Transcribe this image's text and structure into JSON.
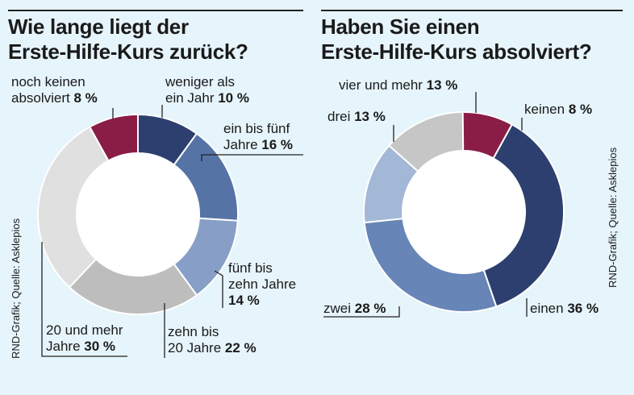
{
  "colors": {
    "background": "#e6f4fb",
    "text": "#1a1a1a"
  },
  "source": "RND-Grafik; Quelle: Asklepios",
  "chart_data": [
    {
      "type": "pie",
      "variant": "donut",
      "title": "Wie lange liegt der Erste-Hilfe-Kurs zurück?",
      "title_lines": [
        "Wie lange liegt der",
        "Erste-Hilfe-Kurs zurück?"
      ],
      "unit": "%",
      "start_angle_deg": 0,
      "direction": "clockwise",
      "slices": [
        {
          "label": "weniger als ein Jahr",
          "lines": [
            "weniger als",
            "ein Jahr"
          ],
          "value": 10,
          "value_text": "10 %",
          "color": "#2c3f6e"
        },
        {
          "label": "ein bis fünf Jahre",
          "lines": [
            "ein bis fünf",
            "Jahre"
          ],
          "value": 16,
          "value_text": "16 %",
          "color": "#5673a6"
        },
        {
          "label": "fünf bis zehn Jahre",
          "lines": [
            "fünf bis",
            "zehn Jahre"
          ],
          "value": 14,
          "value_text": "14 %",
          "color": "#879fc7"
        },
        {
          "label": "zehn bis 20 Jahre",
          "lines": [
            "zehn bis",
            "20 Jahre"
          ],
          "value": 22,
          "value_text": "22 %",
          "color": "#bdbdbd"
        },
        {
          "label": "20 und mehr Jahre",
          "lines": [
            "20 und mehr",
            "Jahre"
          ],
          "value": 30,
          "value_text": "30 %",
          "color": "#e0e0e0"
        },
        {
          "label": "noch keinen absolviert",
          "lines": [
            "noch keinen",
            "absolviert"
          ],
          "value": 8,
          "value_text": "8 %",
          "color": "#8a1d46"
        }
      ]
    },
    {
      "type": "pie",
      "variant": "donut",
      "title": "Haben Sie einen Erste-Hilfe-Kurs absolviert?",
      "title_lines": [
        "Haben Sie einen",
        "Erste-Hilfe-Kurs absolviert?"
      ],
      "unit": "%",
      "start_angle_deg": 28.8,
      "direction": "clockwise",
      "slices": [
        {
          "label": "einen",
          "lines": [
            "einen"
          ],
          "value": 36,
          "value_text": "36 %",
          "color": "#2c3f6e"
        },
        {
          "label": "zwei",
          "lines": [
            "zwei"
          ],
          "value": 28,
          "value_text": "28 %",
          "color": "#6785b6"
        },
        {
          "label": "drei",
          "lines": [
            "drei"
          ],
          "value": 13,
          "value_text": "13 %",
          "color": "#a3b7d6"
        },
        {
          "label": "vier und mehr",
          "lines": [
            "vier und mehr"
          ],
          "value": 13,
          "value_text": "13 %",
          "color": "#c6c6c6"
        },
        {
          "label": "keinen",
          "lines": [
            "keinen"
          ],
          "value": 8,
          "value_text": "8 %",
          "color": "#8a1d46"
        }
      ]
    }
  ]
}
